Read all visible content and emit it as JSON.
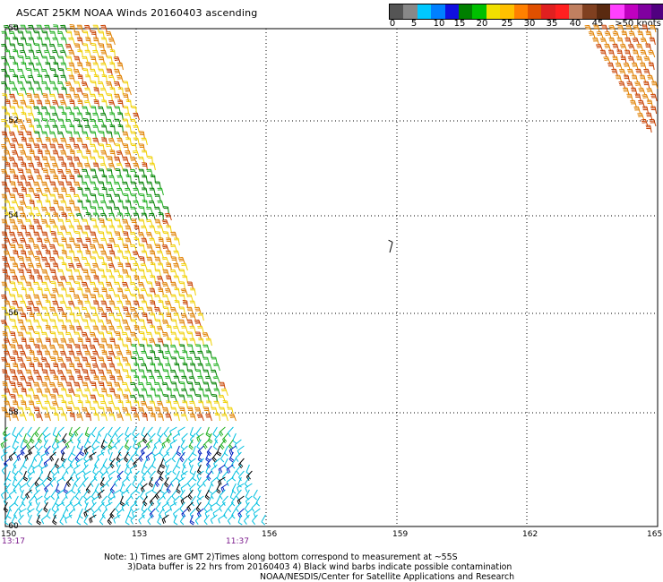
{
  "title": "ASCAT 25KM NOAA Winds 20160403 ascending",
  "legend": {
    "colors": [
      "#555555",
      "#888888",
      "#00c8ff",
      "#0080ff",
      "#1010e0",
      "#008000",
      "#00c000",
      "#f0e000",
      "#ffc000",
      "#ff8000",
      "#e05000",
      "#e02020",
      "#ff2020",
      "#c08060",
      "#804020",
      "#5a2a10",
      "#ff40ff",
      "#c000c0",
      "#8000a0",
      "#500080"
    ],
    "labels": [
      "0",
      "5",
      "10",
      "15",
      "20",
      "25",
      "30",
      "35",
      "40",
      "45",
      ">50 knots"
    ]
  },
  "axes": {
    "lon_ticks": [
      "150",
      "153",
      "156",
      "159",
      "162",
      "165"
    ],
    "lat_ticks": [
      "-50",
      "-52",
      "-54",
      "-56",
      "-58",
      "-60"
    ]
  },
  "times": {
    "left": "13:17",
    "right": "11:37"
  },
  "notes": {
    "line1": "Note: 1) Times are GMT 2)Times along bottom correspond to measurement at ~55S",
    "line2": "3)Data buffer is 22 hrs from 20160403 4) Black wind barbs indicate possible contamination",
    "line3": "NOAA/NESDIS/Center for Satellite Applications and Research"
  },
  "barb_colors": {
    "yellow": "#f0d000",
    "orange": "#e08000",
    "red_orange": "#c84000",
    "green": "#008000",
    "light_green": "#20b020",
    "blue": "#0020c0",
    "cyan": "#00c0e0",
    "black": "#000000"
  }
}
